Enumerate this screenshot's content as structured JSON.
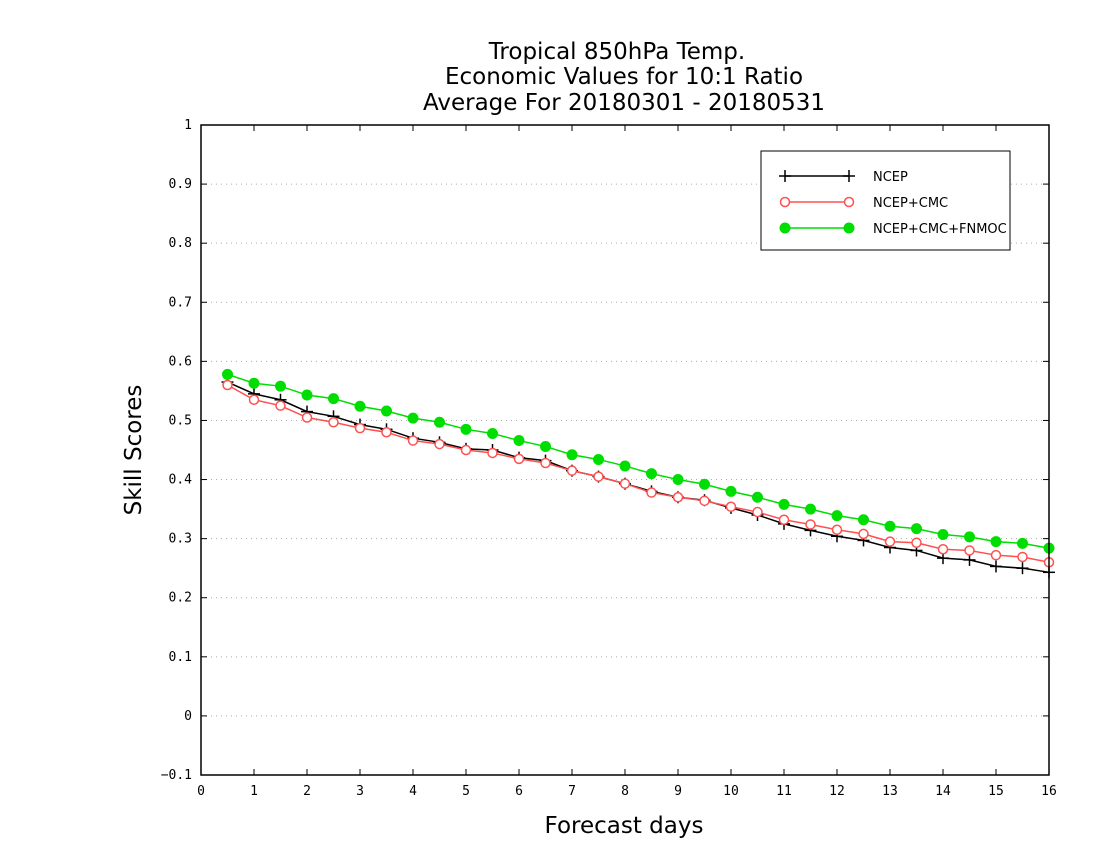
{
  "chart_data": {
    "type": "line",
    "title_lines": [
      "Tropical 850hPa Temp.",
      "Economic Values for 10:1 Ratio",
      "Average For 20180301 - 20180531"
    ],
    "xlabel": "Forecast days",
    "ylabel": "Skill Scores",
    "xlim": [
      0,
      16
    ],
    "ylim": [
      -0.1,
      1
    ],
    "x_ticks": [
      "0",
      "1",
      "2",
      "3",
      "4",
      "5",
      "6",
      "7",
      "8",
      "9",
      "10",
      "11",
      "12",
      "13",
      "14",
      "15",
      "16"
    ],
    "y_ticks": [
      "−0.1",
      "0",
      "0.1",
      "0.2",
      "0.3",
      "0.4",
      "0.5",
      "0.6",
      "0.7",
      "0.8",
      "0.9",
      "1"
    ],
    "grid": true,
    "legend_position": "top-right",
    "x": [
      0.5,
      1,
      1.5,
      2,
      2.5,
      3,
      3.5,
      4,
      4.5,
      5,
      5.5,
      6,
      6.5,
      7,
      7.5,
      8,
      8.5,
      9,
      9.5,
      10,
      10.5,
      11,
      11.5,
      12,
      12.5,
      13,
      13.5,
      14,
      14.5,
      15,
      15.5,
      16
    ],
    "series": [
      {
        "name": "NCEP",
        "color": "#000000",
        "marker": "plus",
        "values": [
          0.565,
          0.545,
          0.535,
          0.515,
          0.507,
          0.493,
          0.485,
          0.47,
          0.463,
          0.452,
          0.45,
          0.437,
          0.432,
          0.415,
          0.405,
          0.393,
          0.38,
          0.37,
          0.365,
          0.352,
          0.34,
          0.325,
          0.314,
          0.304,
          0.297,
          0.285,
          0.28,
          0.267,
          0.264,
          0.253,
          0.25,
          0.243
        ]
      },
      {
        "name": "NCEP+CMC",
        "color": "#ff5050",
        "marker": "open-circle",
        "values": [
          0.56,
          0.535,
          0.525,
          0.505,
          0.497,
          0.487,
          0.48,
          0.466,
          0.46,
          0.45,
          0.445,
          0.435,
          0.428,
          0.415,
          0.405,
          0.393,
          0.378,
          0.37,
          0.364,
          0.354,
          0.345,
          0.332,
          0.324,
          0.315,
          0.308,
          0.295,
          0.293,
          0.282,
          0.28,
          0.272,
          0.269,
          0.26
        ]
      },
      {
        "name": "NCEP+CMC+FNMOC",
        "color": "#00dd00",
        "marker": "filled-circle",
        "values": [
          0.578,
          0.563,
          0.558,
          0.543,
          0.537,
          0.524,
          0.516,
          0.504,
          0.497,
          0.485,
          0.478,
          0.466,
          0.456,
          0.442,
          0.434,
          0.423,
          0.41,
          0.4,
          0.392,
          0.38,
          0.37,
          0.358,
          0.35,
          0.339,
          0.332,
          0.321,
          0.317,
          0.307,
          0.303,
          0.295,
          0.292,
          0.284
        ]
      }
    ]
  }
}
